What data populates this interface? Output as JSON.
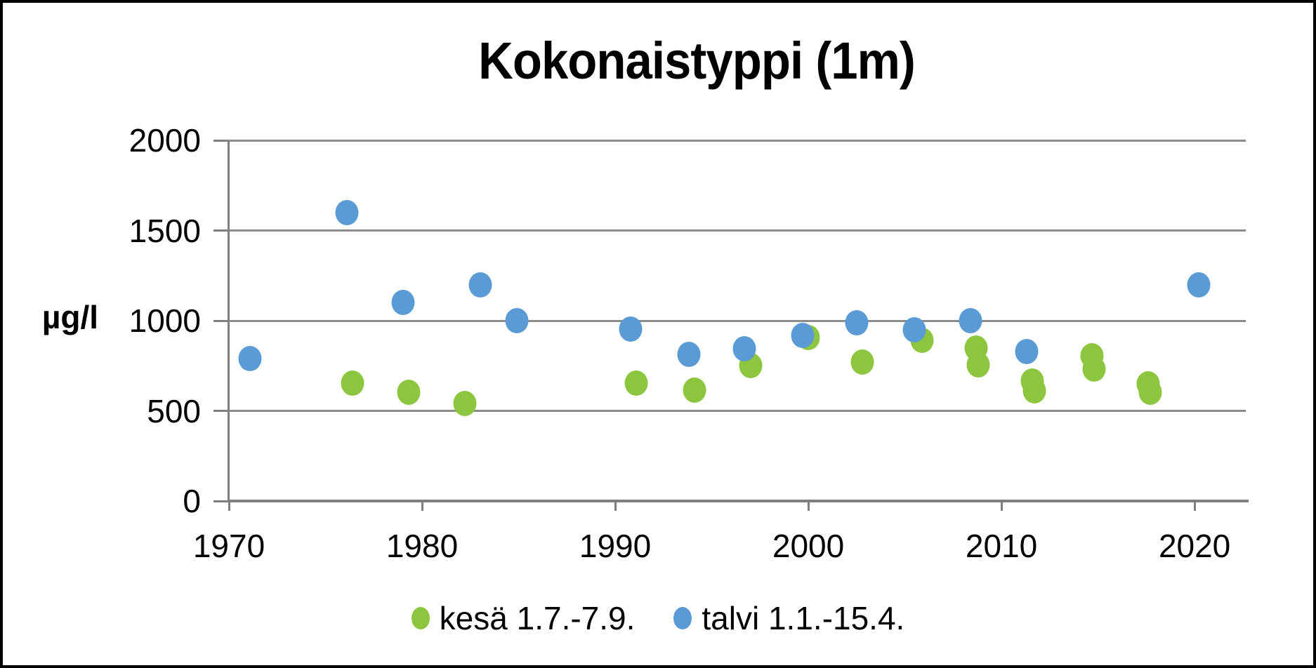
{
  "chart_data": {
    "type": "scatter",
    "title": "Kokonaistyppi (1m)",
    "ylabel": "µg/l",
    "xlim": [
      1970,
      2022.65
    ],
    "ylim": [
      0,
      2000
    ],
    "x_ticks": [
      1970,
      1980,
      1990,
      2000,
      2010,
      2020
    ],
    "y_ticks": [
      0,
      500,
      1000,
      1500,
      2000
    ],
    "grid": "horizontal-only",
    "legend_position": "bottom-center",
    "axis_color": "#7F7F7F",
    "grid_color": "#8C8C8C",
    "text_color": "#000000",
    "series": [
      {
        "name": "kesä 1.7.-7.9.",
        "color": "#8CC63F",
        "points": [
          [
            1976.4,
            655
          ],
          [
            1979.3,
            605
          ],
          [
            1982.2,
            540
          ],
          [
            1991.1,
            655
          ],
          [
            1994.1,
            615
          ],
          [
            1997.0,
            750
          ],
          [
            2000.0,
            905
          ],
          [
            2002.8,
            770
          ],
          [
            2005.9,
            890
          ],
          [
            2008.7,
            850
          ],
          [
            2008.8,
            755
          ],
          [
            2011.6,
            665
          ],
          [
            2011.7,
            610
          ],
          [
            2014.7,
            805
          ],
          [
            2014.8,
            730
          ],
          [
            2017.6,
            650
          ],
          [
            2017.7,
            605
          ]
        ]
      },
      {
        "name": "talvi 1.1.-15.4.",
        "color": "#5B9BD5",
        "points": [
          [
            1971.1,
            790
          ],
          [
            1976.1,
            1600
          ],
          [
            1979.0,
            1100
          ],
          [
            1983.0,
            1200
          ],
          [
            1984.9,
            1000
          ],
          [
            1990.8,
            955
          ],
          [
            1993.8,
            815
          ],
          [
            1996.7,
            845
          ],
          [
            1999.7,
            920
          ],
          [
            2002.5,
            990
          ],
          [
            2005.5,
            950
          ],
          [
            2008.4,
            1000
          ],
          [
            2011.3,
            830
          ],
          [
            2020.2,
            1200
          ]
        ]
      }
    ]
  }
}
